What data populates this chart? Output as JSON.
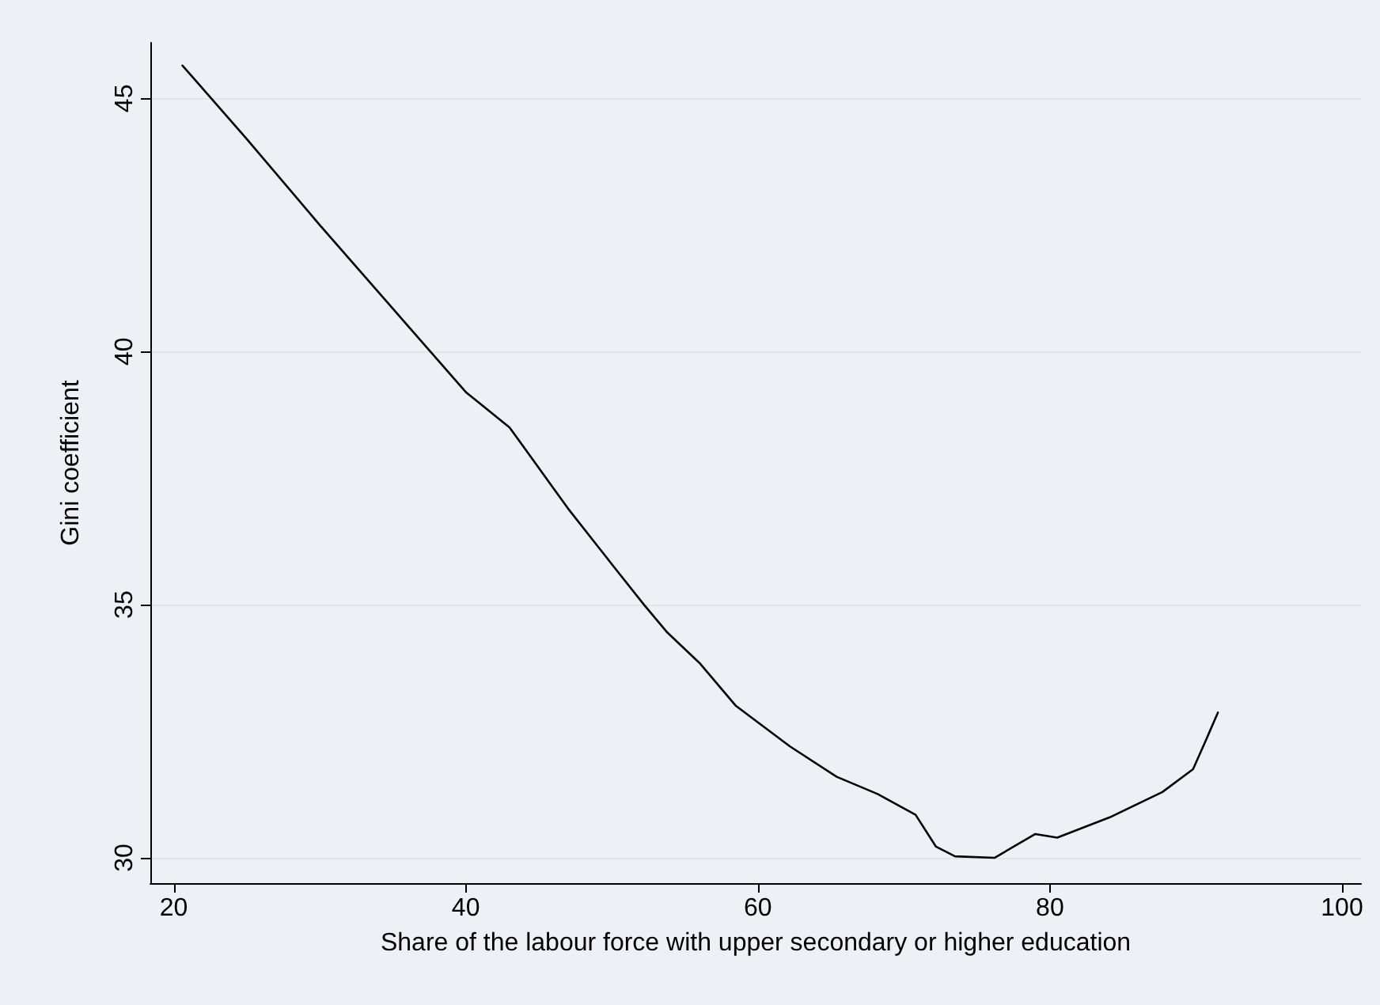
{
  "chart_data": {
    "type": "line",
    "xlabel": "Share of the labour force with upper secondary or higher education",
    "ylabel": "Gini coefficient",
    "xlim": [
      18.4,
      101.3
    ],
    "ylim": [
      29.5,
      46.1
    ],
    "xticks": [
      20,
      40,
      60,
      80,
      100
    ],
    "yticks": [
      30,
      35,
      40,
      45
    ],
    "grid": "y",
    "marker": "none",
    "line_style": "solid",
    "series": [
      {
        "color": "#000000",
        "x": [
          20.6,
          25,
          30,
          35,
          40,
          43,
          44.5,
          46,
          47,
          50,
          52.2,
          53.8,
          56,
          58.5,
          62.2,
          65.4,
          68.2,
          70.8,
          72.2,
          73.5,
          76.2,
          79,
          80.5,
          84.1,
          87.7,
          89.8,
          90.6,
          91.5
        ],
        "values": [
          45.65,
          44.2,
          42.5,
          40.85,
          39.2,
          38.5,
          37.9,
          37.3,
          36.9,
          35.8,
          35.0,
          34.45,
          33.85,
          33.0,
          32.2,
          31.6,
          31.26,
          30.85,
          30.22,
          30.03,
          30.0,
          30.47,
          30.4,
          30.8,
          31.3,
          31.75,
          32.27,
          32.87
        ]
      }
    ]
  }
}
